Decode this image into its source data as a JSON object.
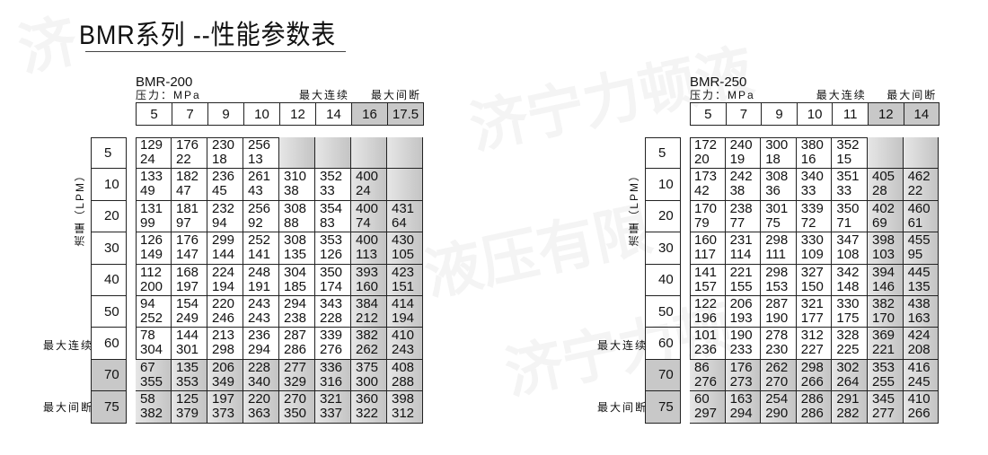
{
  "title": "BMR系列 --性能参数表",
  "watermark": "济宁力顿液压有限公司",
  "tables": [
    {
      "model": "BMR-200",
      "pressure_label": "压力：MPa",
      "max_continuous": "最大连续",
      "max_intermittent": "最大间断",
      "flow_label": "流量（LPM）",
      "pressures": [
        "5",
        "7",
        "9",
        "10",
        "12",
        "14",
        "16",
        "17.5"
      ],
      "flows": [
        "5",
        "10",
        "20",
        "30",
        "40",
        "50",
        "60",
        "70",
        "75"
      ],
      "rows": [
        [
          [
            "129",
            "24"
          ],
          [
            "176",
            "22"
          ],
          [
            "230",
            "18"
          ],
          [
            "256",
            "13"
          ],
          null,
          null,
          null,
          null
        ],
        [
          [
            "133",
            "49"
          ],
          [
            "182",
            "47"
          ],
          [
            "236",
            "45"
          ],
          [
            "261",
            "43"
          ],
          [
            "310",
            "38"
          ],
          [
            "352",
            "33"
          ],
          [
            "400",
            "24"
          ],
          null
        ],
        [
          [
            "131",
            "99"
          ],
          [
            "181",
            "97"
          ],
          [
            "232",
            "94"
          ],
          [
            "256",
            "92"
          ],
          [
            "308",
            "88"
          ],
          [
            "354",
            "83"
          ],
          [
            "400",
            "74"
          ],
          [
            "431",
            "64"
          ]
        ],
        [
          [
            "126",
            "149"
          ],
          [
            "176",
            "147"
          ],
          [
            "299",
            "144"
          ],
          [
            "252",
            "141"
          ],
          [
            "308",
            "135"
          ],
          [
            "353",
            "126"
          ],
          [
            "400",
            "113"
          ],
          [
            "430",
            "105"
          ]
        ],
        [
          [
            "112",
            "200"
          ],
          [
            "168",
            "197"
          ],
          [
            "224",
            "194"
          ],
          [
            "248",
            "191"
          ],
          [
            "304",
            "185"
          ],
          [
            "350",
            "174"
          ],
          [
            "393",
            "160"
          ],
          [
            "423",
            "151"
          ]
        ],
        [
          [
            "94",
            "252"
          ],
          [
            "154",
            "249"
          ],
          [
            "220",
            "246"
          ],
          [
            "243",
            "243"
          ],
          [
            "294",
            "238"
          ],
          [
            "343",
            "228"
          ],
          [
            "384",
            "212"
          ],
          [
            "414",
            "194"
          ]
        ],
        [
          [
            "78",
            "304"
          ],
          [
            "144",
            "301"
          ],
          [
            "213",
            "298"
          ],
          [
            "236",
            "294"
          ],
          [
            "287",
            "286"
          ],
          [
            "339",
            "276"
          ],
          [
            "382",
            "262"
          ],
          [
            "410",
            "243"
          ]
        ],
        [
          [
            "67",
            "355"
          ],
          [
            "135",
            "353"
          ],
          [
            "206",
            "349"
          ],
          [
            "228",
            "340"
          ],
          [
            "277",
            "329"
          ],
          [
            "336",
            "316"
          ],
          [
            "375",
            "300"
          ],
          [
            "408",
            "288"
          ]
        ],
        [
          [
            "58",
            "382"
          ],
          [
            "125",
            "379"
          ],
          [
            "197",
            "373"
          ],
          [
            "220",
            "363"
          ],
          [
            "270",
            "350"
          ],
          [
            "321",
            "337"
          ],
          [
            "360",
            "322"
          ],
          [
            "398",
            "312"
          ]
        ]
      ]
    },
    {
      "model": "BMR-250",
      "pressure_label": "压力：MPa",
      "max_continuous": "最大连续",
      "max_intermittent": "最大间断",
      "flow_label": "流量（LPM）",
      "pressures": [
        "5",
        "7",
        "9",
        "10",
        "11",
        "12",
        "14"
      ],
      "flows": [
        "5",
        "10",
        "20",
        "30",
        "40",
        "50",
        "60",
        "70",
        "75"
      ],
      "rows": [
        [
          [
            "172",
            "20"
          ],
          [
            "240",
            "19"
          ],
          [
            "300",
            "18"
          ],
          [
            "380",
            "16"
          ],
          [
            "352",
            "15"
          ],
          null,
          null
        ],
        [
          [
            "173",
            "42"
          ],
          [
            "242",
            "38"
          ],
          [
            "308",
            "36"
          ],
          [
            "340",
            "33"
          ],
          [
            "351",
            "33"
          ],
          [
            "405",
            "28"
          ],
          [
            "462",
            "22"
          ]
        ],
        [
          [
            "170",
            "79"
          ],
          [
            "238",
            "77"
          ],
          [
            "301",
            "75"
          ],
          [
            "339",
            "72"
          ],
          [
            "350",
            "71"
          ],
          [
            "402",
            "69"
          ],
          [
            "460",
            "61"
          ]
        ],
        [
          [
            "160",
            "117"
          ],
          [
            "231",
            "114"
          ],
          [
            "298",
            "111"
          ],
          [
            "330",
            "109"
          ],
          [
            "347",
            "108"
          ],
          [
            "398",
            "103"
          ],
          [
            "455",
            "95"
          ]
        ],
        [
          [
            "141",
            "157"
          ],
          [
            "221",
            "155"
          ],
          [
            "298",
            "153"
          ],
          [
            "327",
            "150"
          ],
          [
            "342",
            "148"
          ],
          [
            "394",
            "146"
          ],
          [
            "445",
            "135"
          ]
        ],
        [
          [
            "122",
            "196"
          ],
          [
            "206",
            "193"
          ],
          [
            "287",
            "190"
          ],
          [
            "321",
            "177"
          ],
          [
            "330",
            "175"
          ],
          [
            "382",
            "170"
          ],
          [
            "438",
            "163"
          ]
        ],
        [
          [
            "101",
            "236"
          ],
          [
            "190",
            "233"
          ],
          [
            "278",
            "230"
          ],
          [
            "312",
            "227"
          ],
          [
            "328",
            "225"
          ],
          [
            "369",
            "221"
          ],
          [
            "424",
            "208"
          ]
        ],
        [
          [
            "86",
            "276"
          ],
          [
            "176",
            "273"
          ],
          [
            "262",
            "270"
          ],
          [
            "298",
            "266"
          ],
          [
            "302",
            "264"
          ],
          [
            "353",
            "255"
          ],
          [
            "416",
            "245"
          ]
        ],
        [
          [
            "60",
            "297"
          ],
          [
            "163",
            "294"
          ],
          [
            "254",
            "290"
          ],
          [
            "286",
            "286"
          ],
          [
            "291",
            "282"
          ],
          [
            "345",
            "277"
          ],
          [
            "410",
            "266"
          ]
        ]
      ]
    }
  ]
}
